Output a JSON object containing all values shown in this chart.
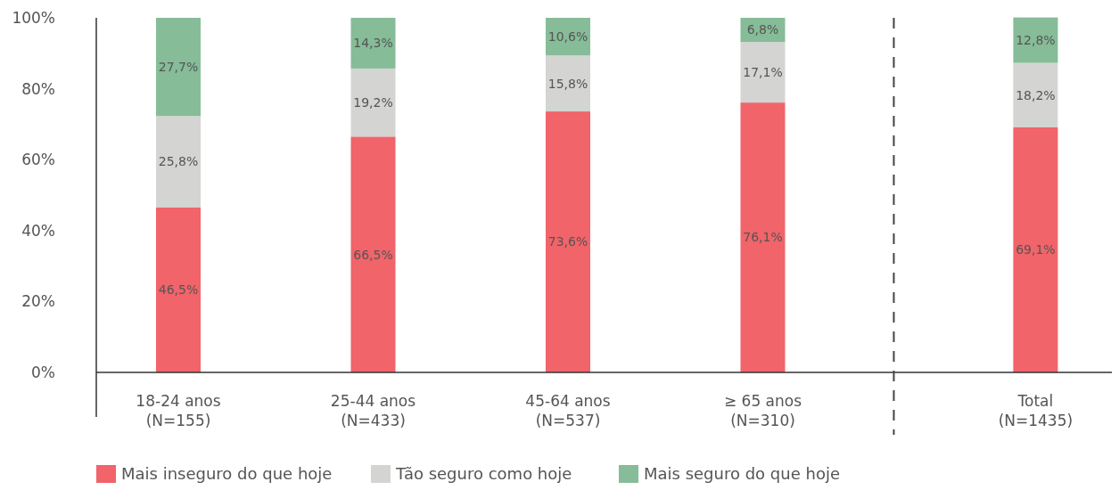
{
  "chart_data": {
    "type": "bar",
    "stacked": true,
    "categories": [
      "18-24 anos\n(N=155)",
      "25-44 anos\n(N=433)",
      "45-64 anos\n(N=537)",
      "≥ 65 anos\n(N=310)",
      "Total\n(N=1435)"
    ],
    "ylim": [
      0,
      100
    ],
    "yticks": [
      {
        "value": 0,
        "label": "0%"
      },
      {
        "value": 20,
        "label": "20%"
      },
      {
        "value": 40,
        "label": "40%"
      },
      {
        "value": 60,
        "label": "60%"
      },
      {
        "value": 80,
        "label": "80%"
      },
      {
        "value": 100,
        "label": "100%"
      }
    ],
    "legend": "bottom",
    "grid": false,
    "series": [
      {
        "name": "Mais inseguro do que hoje",
        "color": "#f0646a",
        "values": [
          46.5,
          66.5,
          73.6,
          76.1,
          69.1
        ],
        "value_labels": [
          "46,5%",
          "66,5%",
          "73,6%",
          "76,1%",
          "69,1%"
        ]
      },
      {
        "name": "Tão seguro como hoje",
        "color": "#d4d4d2",
        "values": [
          25.8,
          19.2,
          15.8,
          17.1,
          18.2
        ],
        "value_labels": [
          "25,8%",
          "19,2%",
          "15,8%",
          "17,1%",
          "18,2%"
        ]
      },
      {
        "name": "Mais seguro do que hoje",
        "color": "#86bc98",
        "values": [
          27.7,
          14.3,
          10.6,
          6.8,
          12.8
        ],
        "value_labels": [
          "27,7%",
          "14,3%",
          "10,6%",
          "6,8%",
          "12,8%"
        ]
      }
    ]
  }
}
